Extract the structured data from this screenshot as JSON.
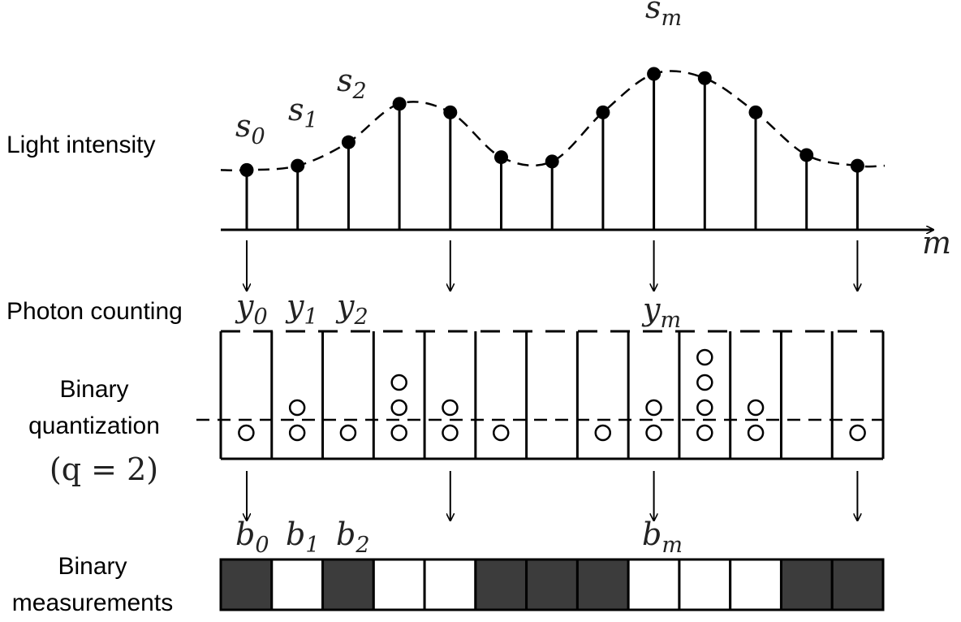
{
  "labels": {
    "light_intensity": "Light intensity",
    "photon_counting": "Photon counting",
    "binary_quantization_line1": "Binary",
    "binary_quantization_line2": "quantization",
    "q_expression": "(q = 2)",
    "binary_measurements_line1": "Binary",
    "binary_measurements_line2": "measurements",
    "axis_variable": "m"
  },
  "intensity_labels": [
    {
      "base": "s",
      "sub": "0"
    },
    {
      "base": "s",
      "sub": "1"
    },
    {
      "base": "s",
      "sub": "2"
    },
    {
      "base": "s",
      "sub": "m"
    }
  ],
  "count_labels": [
    {
      "base": "y",
      "sub": "0"
    },
    {
      "base": "y",
      "sub": "1"
    },
    {
      "base": "y",
      "sub": "2"
    },
    {
      "base": "y",
      "sub": "m"
    }
  ],
  "measurement_labels": [
    {
      "base": "b",
      "sub": "0"
    },
    {
      "base": "b",
      "sub": "1"
    },
    {
      "base": "b",
      "sub": "2"
    },
    {
      "base": "b",
      "sub": "m"
    }
  ],
  "samples": {
    "count": 13,
    "intensity_levels": [
      0.28,
      0.3,
      0.41,
      0.59,
      0.55,
      0.34,
      0.32,
      0.55,
      0.73,
      0.71,
      0.55,
      0.35,
      0.3
    ],
    "photon_counts": [
      1,
      2,
      1,
      3,
      2,
      1,
      0,
      1,
      2,
      4,
      2,
      0,
      1
    ],
    "binary_values": [
      1,
      0,
      1,
      0,
      0,
      1,
      1,
      1,
      0,
      0,
      0,
      1,
      1
    ],
    "arrow_samples": [
      0,
      4,
      8,
      12
    ],
    "quantization_threshold": 2
  },
  "colors": {
    "ink": "#000000",
    "filled_cell": "#3c3c3c",
    "empty_cell": "#ffffff",
    "label_ink": "#222222"
  }
}
